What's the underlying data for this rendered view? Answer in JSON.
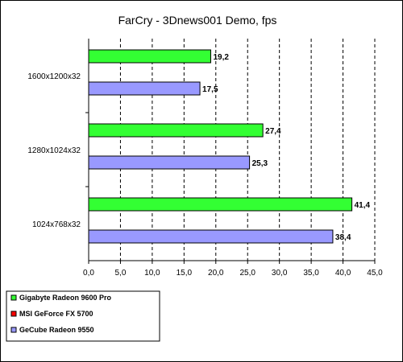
{
  "chart_data": {
    "type": "bar",
    "orientation": "horizontal",
    "title": "FarCry - 3Dnews001 Demo, fps",
    "xlabel": "",
    "ylabel": "",
    "categories": [
      "1600x1200x32",
      "1280x1024x32",
      "1024x768x32"
    ],
    "series": [
      {
        "name": "Gigabyte Radeon 9600 Pro",
        "color": "#33ff33",
        "values": [
          19.2,
          27.4,
          41.4
        ],
        "labels": [
          "19,2",
          "27,4",
          "41,4"
        ]
      },
      {
        "name": "MSI GeForce FX 5700",
        "color": "#ff0000",
        "values": [
          null,
          null,
          null
        ],
        "labels": [
          "",
          "",
          ""
        ]
      },
      {
        "name": "GeCube Radeon 9550",
        "color": "#9999ff",
        "values": [
          17.5,
          25.3,
          38.4
        ],
        "labels": [
          "17,5",
          "25,3",
          "38,4"
        ]
      }
    ],
    "xlim": [
      0,
      45
    ],
    "xticks": [
      "0,0",
      "5,0",
      "10,0",
      "15,0",
      "20,0",
      "25,0",
      "30,0",
      "35,0",
      "40,0",
      "45,0"
    ],
    "grid": "vertical dashed",
    "legend_position": "bottom-left"
  }
}
